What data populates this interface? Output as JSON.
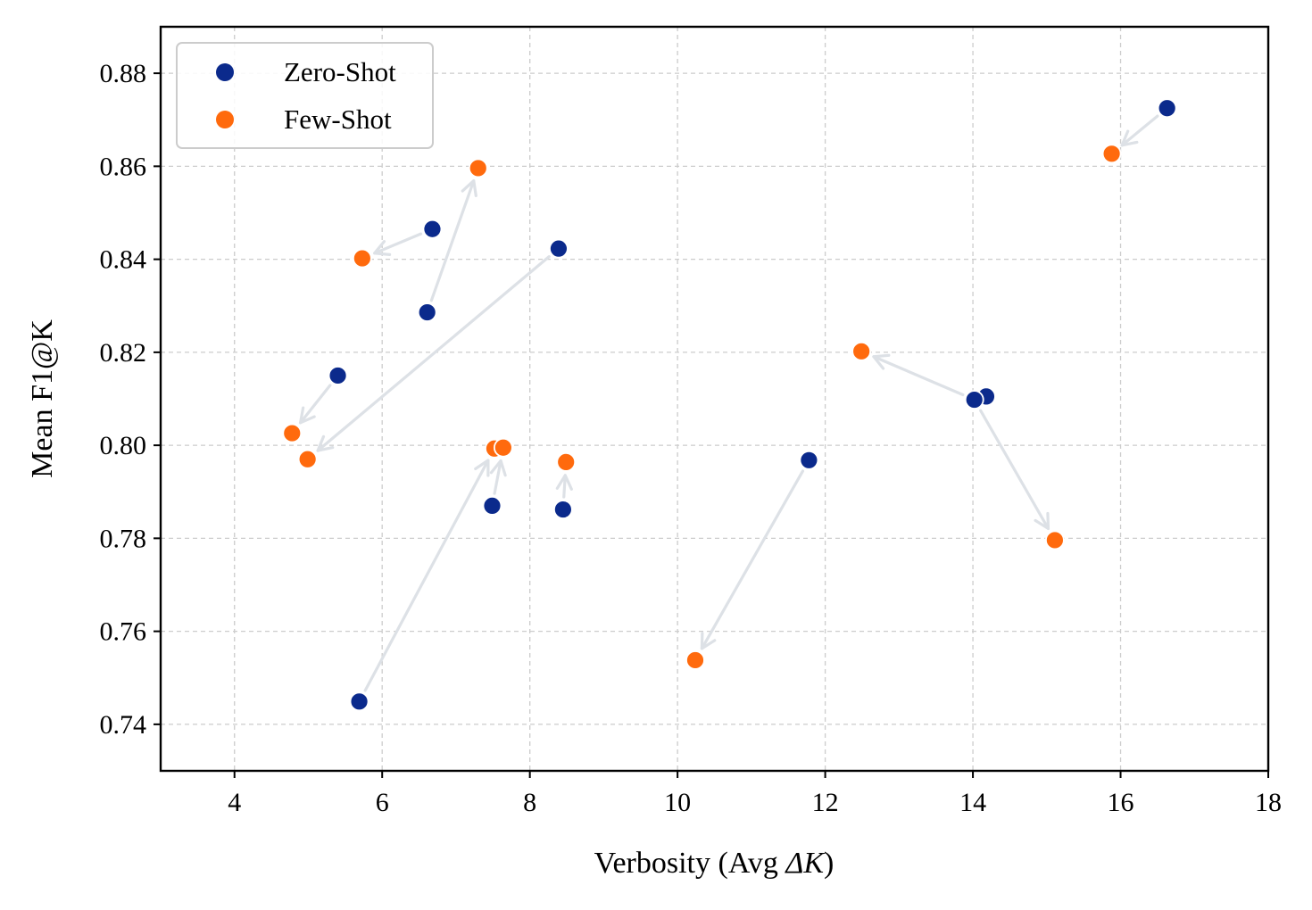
{
  "chart_data": {
    "type": "scatter",
    "title": "",
    "xlabel_text": "Verbosity (Avg ",
    "xlabel_math": "ΔK",
    "xlabel_close": ")",
    "ylabel": "Mean F1@K",
    "xlim": [
      3,
      18
    ],
    "ylim": [
      0.73,
      0.89
    ],
    "x_ticks": [
      4,
      6,
      8,
      10,
      12,
      14,
      16,
      18
    ],
    "x_tick_labels": [
      "4",
      "6",
      "8",
      "10",
      "12",
      "14",
      "16",
      "18"
    ],
    "y_ticks": [
      0.74,
      0.76,
      0.78,
      0.8,
      0.82,
      0.84,
      0.86,
      0.88
    ],
    "y_tick_labels": [
      "0.74",
      "0.76",
      "0.78",
      "0.80",
      "0.82",
      "0.84",
      "0.86",
      "0.88"
    ],
    "grid": true,
    "legend_position": "top-left",
    "series": [
      {
        "name": "Zero-Shot",
        "color": "#0b2a8c",
        "points": [
          {
            "x": 16.63,
            "y": 0.8725
          },
          {
            "x": 6.68,
            "y": 0.8465
          },
          {
            "x": 8.39,
            "y": 0.8423
          },
          {
            "x": 6.61,
            "y": 0.8286
          },
          {
            "x": 5.4,
            "y": 0.815
          },
          {
            "x": 14.18,
            "y": 0.8105
          },
          {
            "x": 14.02,
            "y": 0.8098
          },
          {
            "x": 11.78,
            "y": 0.7968
          },
          {
            "x": 7.49,
            "y": 0.787
          },
          {
            "x": 8.45,
            "y": 0.7862
          },
          {
            "x": 5.69,
            "y": 0.7449
          }
        ]
      },
      {
        "name": "Few-Shot",
        "color": "#ff6a0d",
        "points": [
          {
            "x": 15.88,
            "y": 0.8627
          },
          {
            "x": 7.3,
            "y": 0.8596
          },
          {
            "x": 5.73,
            "y": 0.8402
          },
          {
            "x": 12.49,
            "y": 0.8202
          },
          {
            "x": 4.78,
            "y": 0.8026
          },
          {
            "x": 4.99,
            "y": 0.797
          },
          {
            "x": 7.52,
            "y": 0.7993
          },
          {
            "x": 7.64,
            "y": 0.7995
          },
          {
            "x": 8.49,
            "y": 0.7964
          },
          {
            "x": 15.11,
            "y": 0.7796
          },
          {
            "x": 10.24,
            "y": 0.7538
          }
        ]
      }
    ],
    "arrows": [
      {
        "from": [
          16.63,
          0.8725
        ],
        "to": [
          15.88,
          0.8627
        ]
      },
      {
        "from": [
          6.68,
          0.8465
        ],
        "to": [
          5.73,
          0.8402
        ]
      },
      {
        "from": [
          8.39,
          0.8423
        ],
        "to": [
          4.99,
          0.797
        ]
      },
      {
        "from": [
          6.61,
          0.8286
        ],
        "to": [
          7.3,
          0.8596
        ]
      },
      {
        "from": [
          5.4,
          0.815
        ],
        "to": [
          4.78,
          0.8026
        ]
      },
      {
        "from": [
          14.02,
          0.8098
        ],
        "to": [
          12.49,
          0.8202
        ]
      },
      {
        "from": [
          14.02,
          0.8098
        ],
        "to": [
          15.11,
          0.7796
        ]
      },
      {
        "from": [
          11.78,
          0.7968
        ],
        "to": [
          10.24,
          0.7538
        ]
      },
      {
        "from": [
          7.49,
          0.787
        ],
        "to": [
          7.64,
          0.7995
        ]
      },
      {
        "from": [
          8.45,
          0.7862
        ],
        "to": [
          8.49,
          0.7964
        ]
      },
      {
        "from": [
          5.69,
          0.7449
        ],
        "to": [
          7.52,
          0.7993
        ]
      }
    ],
    "arrow_color": "#dde1e6"
  }
}
